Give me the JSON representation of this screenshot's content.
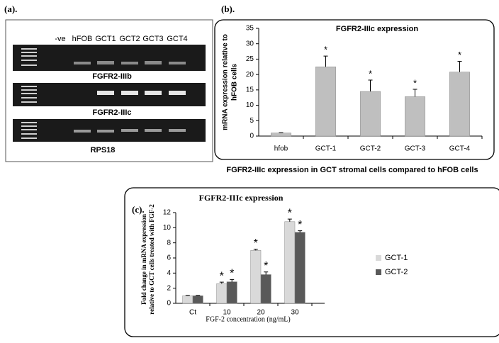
{
  "panel_labels": [
    "(a).",
    "(b).",
    "(c)."
  ],
  "gel": {
    "lanes": [
      "-ve",
      "hFOB",
      "GCT1",
      "GCT2",
      "GCT3",
      "GCT4"
    ],
    "genes": [
      "FGFR2-IIIb",
      "FGFR2-IIIc",
      "RPS18"
    ]
  },
  "chart_data": [
    {
      "type": "bar",
      "title": "FGFR2-IIIc expression",
      "ylabel": [
        "mRNA expression  relative to",
        "hFOB cells"
      ],
      "caption": "FGFR2-IIIc expression in GCT stromal cells compared to hFOB cells",
      "categories": [
        "hfob",
        "GCT-1",
        "GCT-2",
        "GCT-3",
        "GCT-4"
      ],
      "series": [
        {
          "color": "#bfbfbf",
          "values": [
            1,
            22.5,
            14.5,
            12.8,
            20.8
          ],
          "errors": [
            0.1,
            3.5,
            3.7,
            2.4,
            3.5
          ],
          "annotations": [
            null,
            "*",
            "*",
            "*",
            "*"
          ]
        }
      ],
      "ylim": [
        0,
        35
      ],
      "yticks": [
        0,
        5,
        10,
        15,
        20,
        25,
        30,
        35
      ],
      "grid": false
    },
    {
      "type": "bar",
      "title": "FGFR2-IIIc expression",
      "ylabel": [
        "Fold change in mRNA expression",
        "relative to GCT cells treated with FGF-2"
      ],
      "xlabel": "FGF-2  concentration (ng/mL)",
      "categories": [
        "Ct",
        "10",
        "20",
        "30"
      ],
      "series": [
        {
          "name": "GCT-1",
          "color": "#d9d9d9",
          "values": [
            1.0,
            2.6,
            7.0,
            10.8
          ],
          "errors": [
            0.05,
            0.2,
            0.15,
            0.35
          ],
          "annotations": [
            null,
            "*",
            "*",
            "*"
          ]
        },
        {
          "name": "GCT-2",
          "color": "#595959",
          "values": [
            1.0,
            2.85,
            3.8,
            9.4
          ],
          "errors": [
            0.05,
            0.3,
            0.35,
            0.2
          ],
          "annotations": [
            null,
            "*",
            "*",
            "*"
          ]
        }
      ],
      "ylim": [
        0,
        12
      ],
      "yticks": [
        0,
        2,
        4,
        6,
        8,
        10,
        12
      ],
      "grid": false,
      "legend": "right"
    }
  ]
}
